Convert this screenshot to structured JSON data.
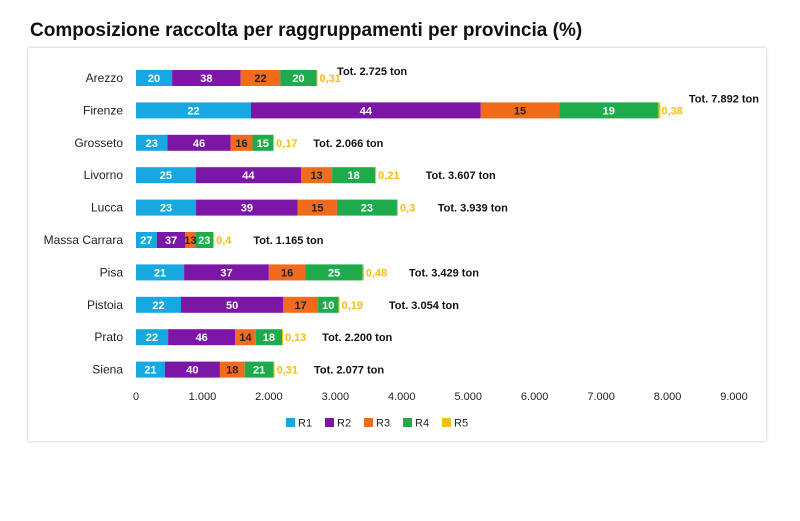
{
  "chart_data": {
    "type": "bar",
    "orientation": "horizontal",
    "stacked": true,
    "title": "Composizione raccolta per raggruppamenti per provincia (%)",
    "categories": [
      "Arezzo",
      "Firenze",
      "Grosseto",
      "Livorno",
      "Lucca",
      "Massa Carrara",
      "Pisa",
      "Pistoia",
      "Prato",
      "Siena"
    ],
    "totals_ton": [
      2725,
      7892,
      2066,
      3607,
      3939,
      1165,
      3429,
      3054,
      2200,
      2077
    ],
    "total_labels": [
      "Tot. 2.725  ton",
      "Tot. 7.892  ton",
      "Tot. 2.066  ton",
      "Tot. 3.607  ton",
      "Tot. 3.939  ton",
      "Tot. 1.165  ton",
      "Tot. 3.429  ton",
      "Tot. 3.054  ton",
      "Tot. 2.200  ton",
      "Tot. 2.077  ton"
    ],
    "series": [
      {
        "name": "R1",
        "color": "#16A9E1",
        "values": [
          20,
          22,
          23,
          25,
          23,
          27,
          21,
          22,
          22,
          21
        ],
        "labels": [
          "20",
          "22",
          "23",
          "25",
          "23",
          "27",
          "21",
          "22",
          "22",
          "21"
        ]
      },
      {
        "name": "R2",
        "color": "#7B16A7",
        "values": [
          38,
          44,
          46,
          44,
          39,
          37,
          37,
          50,
          46,
          40
        ],
        "labels": [
          "38",
          "44",
          "46",
          "44",
          "39",
          "37",
          "37",
          "50",
          "46",
          "40"
        ]
      },
      {
        "name": "R3",
        "color": "#F26B1D",
        "values": [
          22,
          15,
          16,
          13,
          15,
          13,
          16,
          17,
          14,
          18
        ],
        "labels": [
          "22",
          "15",
          "16",
          "13",
          "15",
          "13",
          "16",
          "17",
          "14",
          "18"
        ]
      },
      {
        "name": "R4",
        "color": "#1DAB4C",
        "values": [
          20,
          19,
          15,
          18,
          23,
          23,
          25,
          10,
          18,
          21
        ],
        "labels": [
          "20",
          "19",
          "15",
          "18",
          "23",
          "23",
          "25",
          "10",
          "18",
          "21"
        ]
      },
      {
        "name": "R5",
        "color": "#F5BE12",
        "values": [
          0.31,
          0.38,
          0.17,
          0.21,
          0.3,
          0.4,
          0.48,
          0.19,
          0.13,
          0.31
        ],
        "labels": [
          "0,31",
          "0,38",
          "0,17",
          "0,21",
          "0,3",
          "0,4",
          "0,48",
          "0,19",
          "0,13",
          "0,31"
        ]
      }
    ],
    "xlim": [
      0,
      9000
    ],
    "xticks": [
      0,
      1000,
      2000,
      3000,
      4000,
      5000,
      6000,
      7000,
      8000,
      9000
    ],
    "xtick_labels": [
      "0",
      "1.000",
      "2.000",
      "3.000",
      "4.000",
      "5.000",
      "6.000",
      "7.000",
      "8.000",
      "9.000"
    ],
    "legend": [
      "R1",
      "R2",
      "R3",
      "R4",
      "R5"
    ],
    "legend_position": "bottom",
    "grid": false
  }
}
